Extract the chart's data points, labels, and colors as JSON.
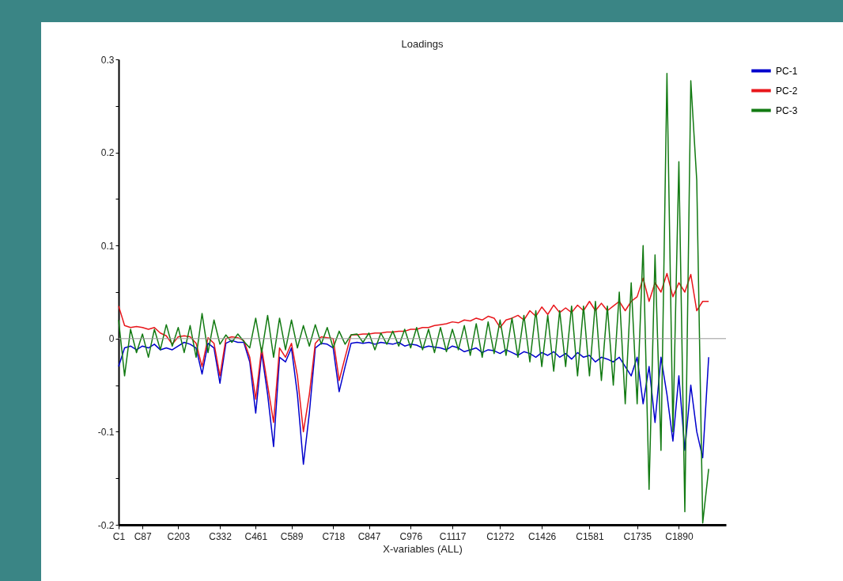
{
  "chart_data": {
    "type": "line",
    "title": "Loadings",
    "xlabel": "X-variables (ALL)",
    "categories": [
      "C1",
      null,
      null,
      null,
      "C87",
      null,
      null,
      null,
      null,
      null,
      "C203",
      null,
      null,
      null,
      null,
      null,
      null,
      "C332",
      null,
      null,
      null,
      null,
      null,
      "C461",
      null,
      null,
      null,
      null,
      null,
      "C589",
      null,
      null,
      null,
      null,
      null,
      null,
      "C718",
      null,
      null,
      null,
      null,
      null,
      "C847",
      null,
      null,
      null,
      null,
      null,
      null,
      "C976",
      null,
      null,
      null,
      null,
      null,
      null,
      "C1117",
      null,
      null,
      null,
      null,
      null,
      null,
      null,
      "C1272",
      null,
      null,
      null,
      null,
      null,
      null,
      "C1426",
      null,
      null,
      null,
      null,
      null,
      null,
      null,
      "C1581",
      null,
      null,
      null,
      null,
      null,
      null,
      null,
      "C1735",
      null,
      null,
      null,
      null,
      null,
      null,
      "C1890",
      null,
      null,
      null,
      null,
      null
    ],
    "ylim": [
      -0.2,
      0.3
    ],
    "yticks": [
      -0.2,
      {
        "value": -0.15,
        "label": null
      },
      -0.1,
      {
        "value": -0.05,
        "label": null
      },
      0,
      {
        "value": 0.05,
        "label": null
      },
      0.1,
      {
        "value": 0.15,
        "label": null
      },
      0.2,
      {
        "value": 0.25,
        "label": null
      },
      0.3
    ],
    "grid": false,
    "legend": "right",
    "marker": "none",
    "line_style": "solid",
    "ref_lines": [
      {
        "axis": "y",
        "value": 0,
        "color": "#999999"
      }
    ],
    "series": [
      {
        "name": "PC-1",
        "color": "#0000cc",
        "values": [
          -0.03,
          -0.01,
          -0.008,
          -0.012,
          -0.008,
          -0.01,
          -0.006,
          -0.012,
          -0.01,
          -0.012,
          -0.008,
          -0.004,
          -0.006,
          -0.01,
          -0.038,
          -0.005,
          -0.01,
          -0.048,
          -0.005,
          -0.002,
          -0.004,
          -0.004,
          -0.025,
          -0.08,
          -0.015,
          -0.06,
          -0.116,
          -0.02,
          -0.025,
          -0.01,
          -0.06,
          -0.135,
          -0.08,
          -0.01,
          -0.005,
          -0.006,
          -0.01,
          -0.057,
          -0.03,
          -0.005,
          -0.004,
          -0.005,
          -0.004,
          -0.006,
          -0.004,
          -0.005,
          -0.006,
          -0.004,
          -0.008,
          -0.006,
          -0.007,
          -0.01,
          -0.008,
          -0.009,
          -0.01,
          -0.012,
          -0.008,
          -0.01,
          -0.014,
          -0.012,
          -0.01,
          -0.015,
          -0.012,
          -0.013,
          -0.016,
          -0.012,
          -0.015,
          -0.018,
          -0.014,
          -0.016,
          -0.02,
          -0.015,
          -0.018,
          -0.014,
          -0.02,
          -0.016,
          -0.022,
          -0.015,
          -0.02,
          -0.018,
          -0.025,
          -0.02,
          -0.022,
          -0.025,
          -0.02,
          -0.03,
          -0.04,
          -0.02,
          -0.07,
          -0.03,
          -0.09,
          -0.02,
          -0.06,
          -0.11,
          -0.04,
          -0.12,
          -0.05,
          -0.1,
          -0.128,
          -0.02
        ]
      },
      {
        "name": "PC-2",
        "color": "#e8161b",
        "values": [
          0.035,
          0.014,
          0.012,
          0.013,
          0.012,
          0.01,
          0.012,
          0.006,
          0.003,
          -0.006,
          0.002,
          0.003,
          0.002,
          -0.005,
          -0.03,
          0.001,
          -0.005,
          -0.04,
          0,
          0.002,
          0.001,
          -0.002,
          -0.02,
          -0.065,
          -0.01,
          -0.05,
          -0.09,
          -0.01,
          -0.02,
          -0.005,
          -0.04,
          -0.1,
          -0.06,
          -0.005,
          0.002,
          0.001,
          0,
          -0.045,
          -0.02,
          0.004,
          0.004,
          0.005,
          0.005,
          0.006,
          0.006,
          0.007,
          0.007,
          0.008,
          0.008,
          0.01,
          0.01,
          0.012,
          0.012,
          0.014,
          0.015,
          0.016,
          0.018,
          0.017,
          0.02,
          0.019,
          0.022,
          0.02,
          0.024,
          0.022,
          0.012,
          0.02,
          0.022,
          0.025,
          0.02,
          0.03,
          0.024,
          0.034,
          0.026,
          0.036,
          0.028,
          0.033,
          0.028,
          0.036,
          0.03,
          0.04,
          0.03,
          0.038,
          0.03,
          0.035,
          0.04,
          0.03,
          0.04,
          0.045,
          0.065,
          0.04,
          0.06,
          0.05,
          0.07,
          0.045,
          0.06,
          0.05,
          0.069,
          0.03,
          0.04,
          0.04
        ]
      },
      {
        "name": "PC-3",
        "color": "#127a12",
        "values": [
          0.02,
          -0.04,
          0.01,
          -0.015,
          0.005,
          -0.02,
          0.01,
          -0.012,
          0.015,
          -0.008,
          0.012,
          -0.015,
          0.014,
          -0.02,
          0.027,
          -0.015,
          0.02,
          -0.006,
          0.004,
          -0.004,
          0.005,
          -0.003,
          -0.01,
          0.022,
          -0.015,
          0.025,
          -0.02,
          0.022,
          -0.012,
          0.02,
          -0.01,
          0.014,
          -0.008,
          0.015,
          -0.006,
          0.012,
          -0.01,
          0.008,
          -0.006,
          0.004,
          0.005,
          -0.004,
          0.006,
          -0.012,
          0.006,
          -0.006,
          0.008,
          -0.008,
          0.01,
          -0.01,
          0.012,
          -0.012,
          0.01,
          -0.015,
          0.012,
          -0.014,
          0.01,
          -0.012,
          0.014,
          -0.018,
          0.016,
          -0.02,
          0.018,
          -0.016,
          0.02,
          -0.018,
          0.022,
          -0.02,
          0.025,
          -0.025,
          0.03,
          -0.03,
          0.025,
          -0.035,
          0.03,
          -0.03,
          0.035,
          -0.04,
          0.035,
          -0.04,
          0.04,
          -0.045,
          0.035,
          -0.05,
          0.05,
          -0.07,
          0.06,
          -0.07,
          0.1,
          -0.162,
          0.09,
          -0.12,
          0.285,
          -0.1,
          0.19,
          -0.186,
          0.277,
          0.17,
          -0.198,
          -0.14
        ]
      }
    ]
  }
}
